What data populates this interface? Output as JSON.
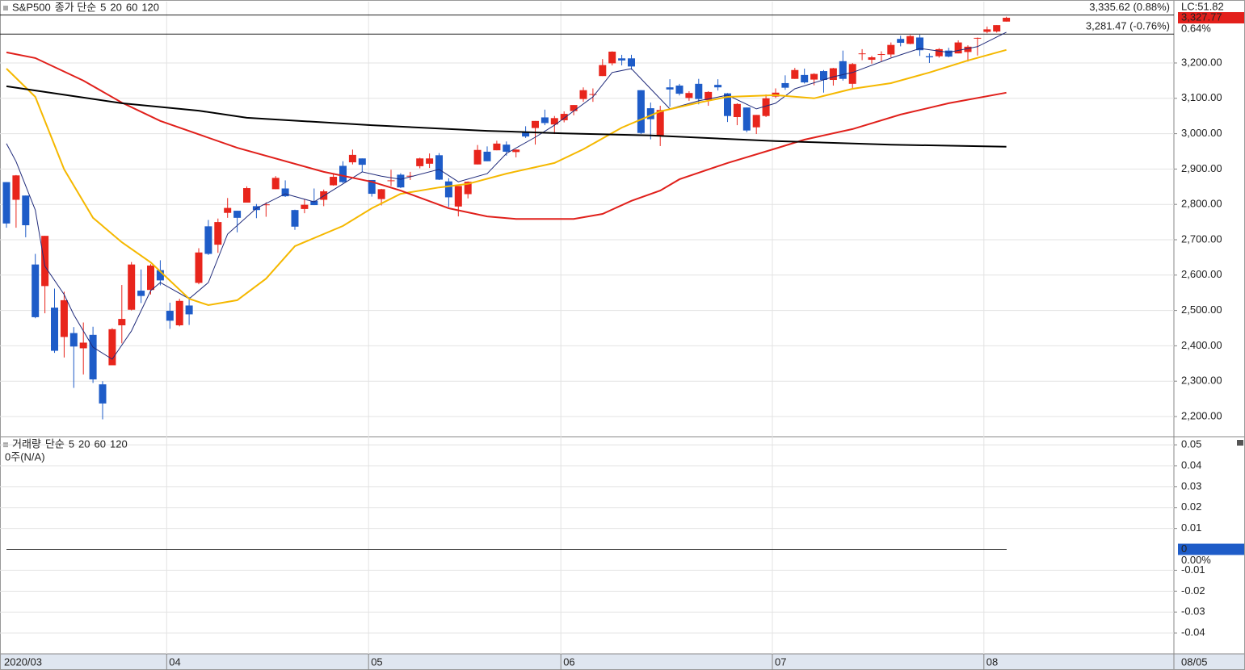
{
  "chart_data": [
    {
      "type": "candlestick",
      "title": "S&P500",
      "legend_prefix": "종가 단순",
      "categories": [
        "2020/03",
        null,
        null,
        null,
        null,
        null,
        null,
        null,
        null,
        null,
        null,
        null,
        null,
        null,
        null,
        null,
        null,
        "04",
        null,
        null,
        null,
        null,
        null,
        null,
        null,
        null,
        null,
        null,
        null,
        null,
        null,
        null,
        null,
        null,
        null,
        null,
        null,
        null,
        "05",
        null,
        null,
        null,
        null,
        null,
        null,
        null,
        null,
        null,
        null,
        null,
        null,
        null,
        null,
        null,
        null,
        null,
        null,
        null,
        "06",
        null,
        null,
        null,
        null,
        null,
        null,
        null,
        null,
        null,
        null,
        null,
        null,
        null,
        null,
        null,
        null,
        null,
        null,
        null,
        null,
        null,
        "07",
        null,
        null,
        null,
        null,
        null,
        null,
        null,
        null,
        null,
        null,
        null,
        null,
        null,
        null,
        null,
        null,
        null,
        null,
        null,
        null,
        null,
        "08",
        null,
        null
      ],
      "x_end_label": "08/05",
      "series": [
        {
          "up_color": "#e8251c",
          "down_color": "#1e5cc8",
          "open": [
            2863,
            2813,
            2825,
            2630,
            2569,
            2508,
            2425,
            2436,
            2393,
            2431,
            2291,
            2345,
            2458,
            2502,
            2556,
            2558,
            2614,
            2499,
            2458,
            2514,
            2578,
            2738,
            2686,
            2776,
            2782,
            2805,
            2795,
            2800,
            2843,
            2845,
            2784,
            2787,
            2810,
            2813,
            2854,
            2909,
            2919,
            2930,
            2869,
            2815,
            2868,
            2884,
            2879,
            2908,
            2915,
            2939,
            2865,
            2794,
            2829,
            2913,
            2949,
            2953,
            2969,
            2948,
            3004,
            3016,
            3046,
            3026,
            3038,
            3064,
            3098,
            3112,
            3163,
            3199,
            3213,
            3213,
            3123,
            3072,
            2993,
            3131,
            3136,
            3101,
            3141,
            3095,
            3138,
            3114,
            3047,
            3074,
            3018,
            3050,
            3105,
            3143,
            3155,
            3166,
            3153,
            3177,
            3152,
            3205,
            3141,
            3226,
            3209,
            3224,
            3224,
            3268,
            3254,
            3272,
            3219,
            3219,
            3235,
            3227,
            3231,
            3270,
            3288,
            3289,
            3317
          ],
          "high": [
            2863,
            2883,
            2825,
            2660,
            2711,
            2562,
            2553,
            2453,
            2466,
            2454,
            2300,
            2450,
            2572,
            2637,
            2616,
            2631,
            2642,
            2522,
            2533,
            2538,
            2676,
            2756,
            2760,
            2818,
            2782,
            2851,
            2801,
            2806,
            2880,
            2868,
            2785,
            2815,
            2845,
            2842,
            2888,
            2922,
            2955,
            2930,
            2869,
            2844,
            2898,
            2888,
            2892,
            2932,
            2944,
            2945,
            2874,
            2852,
            2865,
            2968,
            2964,
            2980,
            2978,
            2956,
            3021,
            3036,
            3068,
            3050,
            3063,
            3081,
            3131,
            3128,
            3211,
            3233,
            3223,
            3223,
            3123,
            3088,
            3079,
            3154,
            3141,
            3120,
            3155,
            3120,
            3154,
            3115,
            3086,
            3074,
            3053,
            3111,
            3128,
            3165,
            3186,
            3184,
            3171,
            3180,
            3186,
            3235,
            3200,
            3239,
            3220,
            3233,
            3258,
            3277,
            3279,
            3280,
            3227,
            3242,
            3243,
            3264,
            3250,
            3272,
            3303,
            3307,
            3330.77
          ],
          "low": [
            2734,
            2734,
            2707,
            2478,
            2492,
            2380,
            2367,
            2281,
            2319,
            2295,
            2192,
            2345,
            2407,
            2500,
            2521,
            2545,
            2571,
            2448,
            2455,
            2459,
            2574,
            2657,
            2663,
            2762,
            2721,
            2805,
            2761,
            2765,
            2843,
            2821,
            2728,
            2775,
            2798,
            2795,
            2853,
            2860,
            2913,
            2892,
            2822,
            2797,
            2852,
            2846,
            2869,
            2902,
            2903,
            2869,
            2793,
            2766,
            2817,
            2913,
            2922,
            2953,
            2938,
            2933,
            2988,
            2969,
            3024,
            2999,
            3032,
            3052,
            3090,
            3090,
            3163,
            3193,
            3193,
            3181,
            2999,
            2984,
            2965,
            3076,
            3108,
            3093,
            3083,
            3079,
            3122,
            3033,
            3024,
            3004,
            2999,
            3047,
            3101,
            3124,
            3155,
            3142,
            3137,
            3116,
            3136,
            3150,
            3128,
            3208,
            3198,
            3205,
            3216,
            3247,
            3253,
            3220,
            3200,
            3215,
            3216,
            3227,
            3204,
            3221,
            3284,
            3286,
            3317
          ],
          "close": [
            2746,
            2882,
            2741,
            2481,
            2711,
            2386,
            2529,
            2398,
            2409,
            2305,
            2237,
            2447,
            2476,
            2630,
            2541,
            2627,
            2585,
            2471,
            2527,
            2489,
            2664,
            2660,
            2750,
            2790,
            2762,
            2846,
            2784,
            2800,
            2875,
            2823,
            2737,
            2799,
            2798,
            2837,
            2878,
            2863,
            2940,
            2912,
            2830,
            2843,
            2868,
            2848,
            2881,
            2930,
            2930,
            2870,
            2820,
            2852,
            2864,
            2954,
            2922,
            2972,
            2949,
            2955,
            2992,
            3036,
            3030,
            3044,
            3056,
            3081,
            3123,
            3112,
            3194,
            3232,
            3207,
            3190,
            3002,
            3041,
            3067,
            3125,
            3113,
            3115,
            3098,
            3118,
            3131,
            3050,
            3084,
            3009,
            3053,
            3100,
            3116,
            3130,
            3180,
            3145,
            3169,
            3152,
            3185,
            3155,
            3197,
            3227,
            3216,
            3225,
            3251,
            3257,
            3276,
            3236,
            3216,
            3239,
            3218,
            3258,
            3246,
            3271,
            3295,
            3307,
            3327.77
          ]
        }
      ],
      "lines": [
        {
          "name": "5",
          "color": "#1f2a7a",
          "x": [
            0,
            1,
            3,
            4,
            6,
            7,
            9,
            11,
            13,
            15,
            16,
            19,
            21,
            23,
            26,
            29,
            32,
            35,
            37,
            39,
            41,
            45,
            47,
            50,
            52,
            55,
            57,
            61,
            63,
            65,
            67,
            69,
            72,
            75,
            78,
            80,
            82,
            86,
            88,
            92,
            95,
            98,
            101,
            104
          ],
          "values": [
            2972,
            2921,
            2784,
            2625,
            2545,
            2488,
            2396,
            2362,
            2442,
            2556,
            2579,
            2533,
            2579,
            2716,
            2789,
            2830,
            2807,
            2858,
            2892,
            2880,
            2871,
            2899,
            2864,
            2887,
            2944,
            2990,
            3024,
            3104,
            3173,
            3184,
            3127,
            3070,
            3093,
            3109,
            3070,
            3086,
            3127,
            3161,
            3173,
            3214,
            3241,
            3230,
            3246,
            3287
          ]
        },
        {
          "name": "20",
          "color": "#f5b800",
          "x": [
            0,
            3,
            6,
            9,
            12,
            15,
            19,
            21,
            24,
            27,
            30,
            35,
            38,
            41,
            45,
            48,
            52,
            57,
            60,
            64,
            68,
            72,
            75,
            80,
            84,
            88,
            92,
            96,
            100,
            104
          ],
          "values": [
            3184,
            3104,
            2899,
            2762,
            2693,
            2636,
            2533,
            2515,
            2529,
            2590,
            2682,
            2739,
            2789,
            2830,
            2848,
            2858,
            2887,
            2917,
            2956,
            3017,
            3063,
            3088,
            3104,
            3109,
            3100,
            3127,
            3143,
            3173,
            3207,
            3237
          ]
        },
        {
          "name": "60",
          "color": "#e0201b",
          "x": [
            0,
            3,
            8,
            12,
            16,
            24,
            33,
            38,
            41,
            46,
            50,
            53,
            59,
            62,
            65,
            68,
            70,
            75,
            80,
            83,
            88,
            93,
            98,
            104
          ],
          "values": [
            3230,
            3214,
            3150,
            3088,
            3036,
            2960,
            2892,
            2864,
            2839,
            2789,
            2766,
            2759,
            2759,
            2773,
            2810,
            2839,
            2871,
            2917,
            2958,
            2983,
            3013,
            3054,
            3086,
            3116
          ]
        },
        {
          "name": "120",
          "color": "#000000",
          "x": [
            0,
            6,
            12,
            20,
            25,
            38,
            50,
            58,
            67,
            80,
            92,
            104
          ],
          "values": [
            3134,
            3110,
            3086,
            3065,
            3045,
            3024,
            3008,
            3001,
            2995,
            2979,
            2969,
            2963
          ]
        }
      ],
      "ref_lines": [
        {
          "value": 3335.62,
          "label": "3,335.62 (0.88%)"
        },
        {
          "value": 3281.47,
          "label": "3,281.47 (-0.76%)"
        }
      ],
      "last": {
        "value": 3327.77,
        "label": "3,327.77"
      },
      "last_top_label": "LC:51.82",
      "change_label": "0.64%",
      "ylim": [
        2145.2,
        3373.5
      ],
      "yticks": [
        {
          "value": 2200,
          "label": "2,200.00"
        },
        {
          "value": 2300,
          "label": "2,300.00"
        },
        {
          "value": 2400,
          "label": "2,400.00"
        },
        {
          "value": 2500,
          "label": "2,500.00"
        },
        {
          "value": 2600,
          "label": "2,600.00"
        },
        {
          "value": 2700,
          "label": "2,700.00"
        },
        {
          "value": 2800,
          "label": "2,800.00"
        },
        {
          "value": 2900,
          "label": "2,900.00"
        },
        {
          "value": 3000,
          "label": "3,000.00"
        },
        {
          "value": 3100,
          "label": "3,100.00"
        },
        {
          "value": 3200,
          "label": "3,200.00"
        }
      ],
      "grid": true
    },
    {
      "type": "volume",
      "title": "거래량",
      "title_color": "#2a8a9a",
      "legend_prefix": "단순",
      "lines": [
        {
          "name": "5",
          "color": "#1f2a7a"
        },
        {
          "name": "20",
          "color": "#e0201b"
        },
        {
          "name": "60",
          "color": "#1a9a5a"
        },
        {
          "name": "120",
          "color": "#000000"
        }
      ],
      "status": "0주(N/A)",
      "ylim": [
        -0.05,
        0.0535
      ],
      "yticks": [
        0.05,
        0.04,
        0.03,
        0.02,
        0.01,
        -0.01,
        -0.02,
        -0.03,
        -0.04
      ],
      "current": {
        "value": 0,
        "label": "0"
      },
      "change_label": "0.00%",
      "grid": true
    }
  ]
}
